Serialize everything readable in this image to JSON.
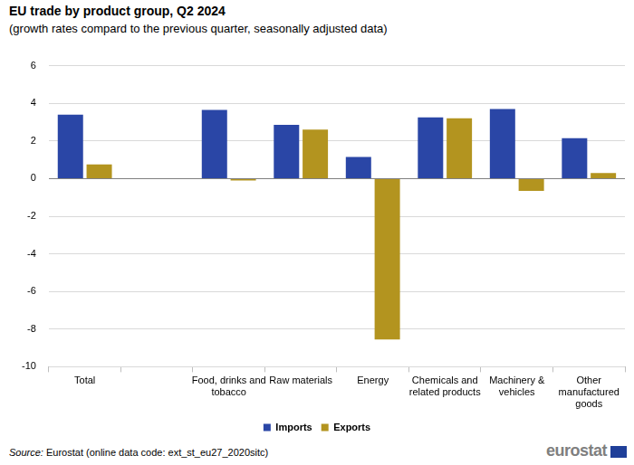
{
  "chart_data": {
    "type": "bar",
    "title": "EU trade by product group, Q2 2024",
    "subtitle": "(growth rates compard to the previous quarter, seasonally adjusted data)",
    "source_label": "Source:",
    "source": "Eurostat (online data code: ext_st_eu27_2020sitc)",
    "logo": "eurostat",
    "categories": [
      "Total",
      null,
      "Food, drinks and tobacco",
      "Raw materials",
      "Energy",
      "Chemicals and related products",
      "Machinery & vehicles",
      "Other manufactured goods"
    ],
    "series": [
      {
        "name": "Imports",
        "color": "#2a46a6",
        "values": [
          3.4,
          null,
          3.65,
          2.85,
          1.15,
          3.25,
          3.7,
          2.15
        ]
      },
      {
        "name": "Exports",
        "color": "#b3941f",
        "values": [
          0.75,
          null,
          -0.1,
          2.6,
          -8.55,
          3.2,
          -0.65,
          0.3
        ]
      }
    ],
    "ylim": [
      -10,
      6
    ],
    "yticks": [
      -10,
      -8,
      -6,
      -4,
      -2,
      0,
      2,
      4,
      6
    ],
    "grid": true,
    "legend": "bottom"
  }
}
